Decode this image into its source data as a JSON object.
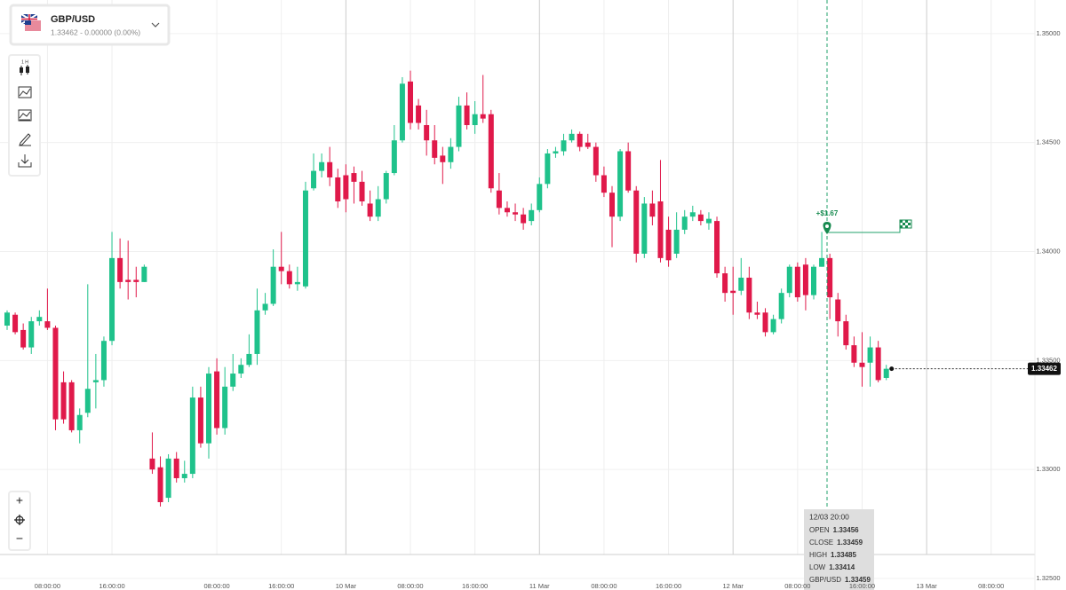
{
  "header": {
    "symbol": "GBP/USD",
    "quote": "1.33462 - 0.00000 (0.00%)"
  },
  "toolbar": {
    "interval": "1 H"
  },
  "zoom": {
    "in": "+",
    "out": "−"
  },
  "trade": {
    "profit": "+$1.67"
  },
  "tooltip": {
    "time": "12/03 20:00",
    "rows": [
      {
        "label": "OPEN",
        "value": 1.33456
      },
      {
        "label": "CLOSE",
        "value": 1.33459
      },
      {
        "label": "HIGH",
        "value": 1.33485
      },
      {
        "label": "LOW",
        "value": 1.33414
      },
      {
        "label": "GBP/USD",
        "value": 1.33459
      }
    ]
  },
  "chart_data": {
    "type": "candlestick",
    "categories": [
      null,
      null,
      null,
      null,
      null,
      "08:00:00",
      null,
      null,
      null,
      null,
      null,
      null,
      null,
      "16:00:00",
      null,
      null,
      null,
      null,
      null,
      null,
      null,
      null,
      null,
      null,
      null,
      null,
      "08:00:00",
      null,
      null,
      null,
      null,
      null,
      null,
      null,
      "16:00:00",
      null,
      null,
      null,
      null,
      null,
      null,
      null,
      "10 Mar",
      null,
      null,
      null,
      null,
      null,
      null,
      null,
      "08:00:00",
      null,
      null,
      null,
      null,
      null,
      null,
      null,
      "16:00:00",
      null,
      null,
      null,
      null,
      null,
      null,
      null,
      "11 Mar",
      null,
      null,
      null,
      null,
      null,
      null,
      null,
      "08:00:00",
      null,
      null,
      null,
      null,
      null,
      null,
      null,
      "16:00:00",
      null,
      null,
      null,
      null,
      null,
      null,
      null,
      "12 Mar",
      null,
      null,
      null,
      null,
      null,
      null,
      null,
      "08:00:00",
      null,
      null,
      null,
      null,
      null,
      null,
      null,
      "16:00:00",
      null,
      null,
      null,
      null,
      null,
      null,
      null,
      "13 Mar",
      null,
      null,
      null,
      null,
      null,
      null,
      null,
      "08:00:00",
      null,
      null,
      null,
      null
    ],
    "open": [
      1.3366,
      1.3371,
      1.3364,
      1.3356,
      1.3368,
      1.3368,
      1.3365,
      1.334,
      1.334,
      1.3318,
      1.3326,
      1.334,
      1.3341,
      1.3359,
      1.3397,
      1.3387,
      1.3387,
      1.3386,
      1.3305,
      1.3301,
      1.3287,
      1.3305,
      1.3296,
      1.3298,
      1.3333,
      1.3312,
      1.3345,
      1.3319,
      1.3338,
      1.3344,
      1.3348,
      1.3353,
      1.3373,
      1.3376,
      1.3393,
      1.3391,
      1.3385,
      1.3384,
      1.3429,
      1.3437,
      1.3441,
      1.3434,
      1.3435,
      1.3436,
      1.3432,
      1.3422,
      1.3416,
      1.3424,
      1.3436,
      1.3451,
      1.3478,
      1.3467,
      1.3458,
      1.3451,
      1.3444,
      1.3441,
      1.3448,
      1.3467,
      1.3458,
      1.3463,
      1.3463,
      1.3428,
      1.342,
      1.3418,
      1.3417,
      1.3414,
      1.3419,
      1.3431,
      1.3445,
      1.3446,
      1.3451,
      1.3454,
      1.345,
      1.3448,
      1.3435,
      1.3427,
      1.3416,
      1.3446,
      1.3428,
      1.3399,
      1.3422,
      1.3423,
      1.341,
      1.3399,
      1.341,
      1.3416,
      1.3417,
      1.3413,
      1.3414,
      1.339,
      1.3382,
      1.3382,
      1.3388,
      1.3372,
      1.3372,
      1.3363,
      1.3369,
      1.3381,
      1.3393,
      1.3394,
      1.338,
      1.3393,
      1.3397,
      1.3378,
      1.3368,
      1.3357,
      1.3349,
      1.3349,
      1.3356,
      1.3342,
      null,
      null,
      null,
      null,
      null,
      null,
      null,
      null,
      null,
      null,
      null,
      null,
      null,
      null,
      null,
      null,
      null
    ],
    "high": [
      1.3373,
      1.3372,
      1.3367,
      1.337,
      1.3373,
      1.3383,
      1.3366,
      1.3345,
      1.3341,
      1.3328,
      1.3385,
      1.3353,
      1.3361,
      1.3409,
      1.3406,
      1.3405,
      1.3393,
      1.3394,
      1.3317,
      1.3306,
      1.3307,
      1.3308,
      1.3304,
      1.3338,
      1.3338,
      1.3347,
      1.3351,
      1.3347,
      1.3353,
      1.3351,
      1.3362,
      1.3383,
      1.3381,
      1.3401,
      1.3409,
      1.3394,
      1.3393,
      1.3432,
      1.3445,
      1.3445,
      1.3448,
      1.3438,
      1.344,
      1.3439,
      1.3437,
      1.3428,
      1.343,
      1.3437,
      1.3458,
      1.348,
      1.3483,
      1.347,
      1.3465,
      1.3458,
      1.3448,
      1.3452,
      1.3471,
      1.3473,
      1.3469,
      1.3481,
      1.3465,
      1.3436,
      1.3423,
      1.3422,
      1.342,
      1.3422,
      1.3434,
      1.3447,
      1.3448,
      1.3454,
      1.3456,
      1.3455,
      1.3454,
      1.345,
      1.3439,
      1.343,
      1.3447,
      1.345,
      1.343,
      1.3425,
      1.3428,
      1.3442,
      1.3416,
      1.3418,
      1.3419,
      1.3421,
      1.3419,
      1.3418,
      1.3416,
      1.3393,
      1.3393,
      1.3397,
      1.3393,
      1.3377,
      1.3374,
      1.3371,
      1.3383,
      1.3394,
      1.3395,
      1.3397,
      1.3394,
      1.3409,
      1.3399,
      1.3381,
      1.3371,
      1.3361,
      1.3363,
      1.3361,
      1.3359,
      1.3348,
      null,
      null,
      null,
      null,
      null,
      null,
      null,
      null,
      null,
      null,
      null,
      null,
      null,
      null,
      null,
      null,
      null
    ],
    "low": [
      1.3364,
      1.3362,
      1.3355,
      1.3353,
      1.3366,
      1.3364,
      1.3318,
      1.3321,
      1.3317,
      1.3312,
      1.3324,
      1.3328,
      1.3338,
      1.3357,
      1.3383,
      1.3378,
      1.3379,
      1.3386,
      1.3298,
      1.3283,
      1.3285,
      1.3294,
      1.3294,
      1.3296,
      1.331,
      1.3305,
      1.3316,
      1.3316,
      1.3336,
      1.3342,
      1.3347,
      1.3348,
      1.3371,
      1.3375,
      1.3385,
      1.3383,
      1.3382,
      1.3383,
      1.3428,
      1.3434,
      1.343,
      1.342,
      1.3418,
      1.3422,
      1.3421,
      1.3414,
      1.3414,
      1.3422,
      1.3435,
      1.345,
      1.3456,
      1.3456,
      1.3444,
      1.344,
      1.3431,
      1.3438,
      1.3446,
      1.3456,
      1.3454,
      1.3459,
      1.3427,
      1.3417,
      1.3416,
      1.3414,
      1.341,
      1.3412,
      1.3418,
      1.3429,
      1.3443,
      1.3444,
      1.345,
      1.3446,
      1.3447,
      1.3432,
      1.3425,
      1.3402,
      1.3414,
      1.3427,
      1.3395,
      1.3397,
      1.3412,
      1.3395,
      1.3393,
      1.3397,
      1.3408,
      1.3414,
      1.3412,
      1.341,
      1.3388,
      1.3377,
      1.3371,
      1.338,
      1.3369,
      1.3369,
      1.3361,
      1.3362,
      1.3367,
      1.3379,
      1.3377,
      1.3373,
      1.3378,
      1.3393,
      1.3369,
      1.3361,
      1.3355,
      1.3347,
      1.3338,
      1.3338,
      1.334,
      1.3341,
      null,
      null,
      null,
      null,
      null,
      null,
      null,
      null,
      null,
      null,
      null,
      null,
      null,
      null,
      null,
      null,
      null
    ],
    "close": [
      1.3372,
      1.3363,
      1.3356,
      1.3368,
      1.337,
      1.3365,
      1.3323,
      1.3323,
      1.3318,
      1.3325,
      1.3337,
      1.3341,
      1.3359,
      1.3397,
      1.3386,
      1.3386,
      1.3386,
      1.3393,
      1.33,
      1.3285,
      1.3305,
      1.3296,
      1.3298,
      1.3333,
      1.3312,
      1.3344,
      1.3319,
      1.3338,
      1.3344,
      1.3348,
      1.3353,
      1.3373,
      1.3376,
      1.3393,
      1.3391,
      1.3385,
      1.3386,
      1.3428,
      1.3437,
      1.3441,
      1.3434,
      1.3423,
      1.3424,
      1.3432,
      1.3423,
      1.3416,
      1.3424,
      1.3436,
      1.3451,
      1.3477,
      1.3459,
      1.3459,
      1.3451,
      1.3443,
      1.3441,
      1.3448,
      1.3467,
      1.3458,
      1.3463,
      1.3461,
      1.3429,
      1.342,
      1.3418,
      1.3417,
      1.3413,
      1.3419,
      1.3431,
      1.3445,
      1.3446,
      1.3451,
      1.3454,
      1.3448,
      1.3448,
      1.3435,
      1.3427,
      1.3416,
      1.3446,
      1.3428,
      1.3399,
      1.3422,
      1.3416,
      1.3397,
      1.3396,
      1.341,
      1.3416,
      1.3418,
      1.3414,
      1.3415,
      1.339,
      1.3381,
      1.3381,
      1.3388,
      1.3372,
      1.3371,
      1.3363,
      1.3369,
      1.3381,
      1.3393,
      1.3379,
      1.338,
      1.3393,
      1.3397,
      1.3379,
      1.3368,
      1.3357,
      1.3349,
      1.3347,
      1.3356,
      1.3341,
      1.33462,
      null,
      null,
      null,
      null,
      null,
      null,
      null,
      null,
      null,
      null,
      null,
      null,
      null,
      null,
      null,
      null,
      null
    ],
    "up_color": "#1fc28b",
    "down_color": "#e0194a",
    "ylim": [
      1.32447,
      1.35154
    ],
    "yticks": [
      {
        "value": 1.325,
        "label": "1.32500"
      },
      {
        "value": 1.33,
        "label": "1.33000"
      },
      {
        "value": 1.335,
        "label": "1.33500"
      },
      {
        "value": 1.34,
        "label": "1.34000"
      },
      {
        "value": 1.345,
        "label": "1.34500"
      },
      {
        "value": 1.35,
        "label": "1.35000"
      }
    ],
    "grid": true,
    "last_price": 1.33462
  }
}
